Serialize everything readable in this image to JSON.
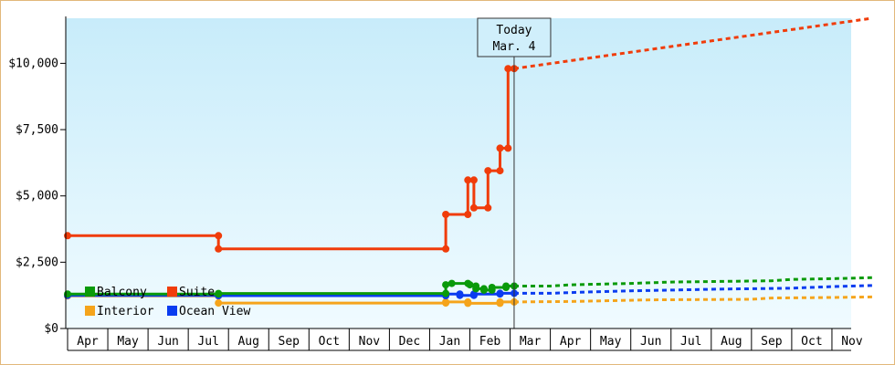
{
  "chart_data": {
    "type": "line",
    "title": "",
    "xlabel": "",
    "ylabel": "",
    "ylim": [
      0,
      11700
    ],
    "y_ticks": [
      {
        "value": 0,
        "label": "$0"
      },
      {
        "value": 2500,
        "label": "$2,500"
      },
      {
        "value": 5000,
        "label": "$5,000"
      },
      {
        "value": 7500,
        "label": "$7,500"
      },
      {
        "value": 10000,
        "label": "$10,000"
      }
    ],
    "months": [
      "Apr",
      "May",
      "Jun",
      "Jul",
      "Aug",
      "Sep",
      "Oct",
      "Nov",
      "Dec",
      "Jan",
      "Feb",
      "Mar",
      "Apr",
      "May",
      "Jun",
      "Jul",
      "Aug",
      "Sep",
      "Oct",
      "Nov"
    ],
    "x_unit": "months since start of Apr (fractional)",
    "today": {
      "line1": "Today",
      "line2": "Mar. 4",
      "x": 11.1
    },
    "grid": false,
    "legend_position": "bottom-left",
    "series": [
      {
        "name": "Balcony",
        "color": "#0a9a0a",
        "points": [
          [
            0,
            1300
          ],
          [
            3.75,
            1300
          ],
          [
            3.75,
            1320
          ],
          [
            9.4,
            1320
          ],
          [
            9.4,
            1650
          ],
          [
            9.55,
            1700
          ],
          [
            9.95,
            1700
          ],
          [
            10.0,
            1650
          ],
          [
            10.15,
            1600
          ],
          [
            10.15,
            1500
          ],
          [
            10.35,
            1500
          ],
          [
            10.35,
            1450
          ],
          [
            10.55,
            1450
          ],
          [
            10.55,
            1550
          ],
          [
            10.9,
            1550
          ],
          [
            10.9,
            1600
          ],
          [
            11.1,
            1600
          ]
        ],
        "forecast": [
          [
            11.1,
            1600
          ],
          [
            12,
            1600
          ],
          [
            12.5,
            1650
          ],
          [
            14,
            1700
          ],
          [
            15,
            1750
          ],
          [
            17.5,
            1800
          ],
          [
            18,
            1850
          ],
          [
            19,
            1880
          ],
          [
            20,
            1920
          ]
        ]
      },
      {
        "name": "Suite",
        "color": "#f03c0a",
        "points": [
          [
            0,
            3500
          ],
          [
            3.75,
            3500
          ],
          [
            3.75,
            3000
          ],
          [
            9.4,
            3000
          ],
          [
            9.4,
            4300
          ],
          [
            9.95,
            4300
          ],
          [
            9.95,
            5600
          ],
          [
            10.1,
            5600
          ],
          [
            10.1,
            4550
          ],
          [
            10.45,
            4550
          ],
          [
            10.45,
            5950
          ],
          [
            10.75,
            5950
          ],
          [
            10.75,
            6800
          ],
          [
            10.95,
            6800
          ],
          [
            10.95,
            9800
          ],
          [
            11.1,
            9800
          ]
        ],
        "forecast": [
          [
            11.1,
            9800
          ],
          [
            20,
            11700
          ]
        ]
      },
      {
        "name": "Interior",
        "color": "#f5a41b",
        "points": [
          [
            0,
            1230
          ],
          [
            3.75,
            1230
          ],
          [
            3.75,
            960
          ],
          [
            9.4,
            960
          ],
          [
            9.4,
            1000
          ],
          [
            9.95,
            1000
          ],
          [
            9.95,
            950
          ],
          [
            10.75,
            950
          ],
          [
            10.75,
            1000
          ],
          [
            11.1,
            1000
          ]
        ],
        "forecast": [
          [
            11.1,
            1000
          ],
          [
            12.5,
            1020
          ],
          [
            13.5,
            1050
          ],
          [
            14.5,
            1080
          ],
          [
            17,
            1100
          ],
          [
            17.5,
            1150
          ],
          [
            19,
            1170
          ],
          [
            20,
            1190
          ]
        ]
      },
      {
        "name": "Ocean View",
        "color": "#0a3cf0",
        "points": [
          [
            0,
            1250
          ],
          [
            3.75,
            1250
          ],
          [
            3.75,
            1240
          ],
          [
            9.4,
            1240
          ],
          [
            9.4,
            1300
          ],
          [
            9.75,
            1300
          ],
          [
            9.75,
            1250
          ],
          [
            10.1,
            1250
          ],
          [
            10.1,
            1300
          ],
          [
            10.75,
            1300
          ],
          [
            10.75,
            1330
          ],
          [
            11.1,
            1330
          ]
        ],
        "forecast": [
          [
            11.1,
            1330
          ],
          [
            12,
            1330
          ],
          [
            13,
            1380
          ],
          [
            14,
            1420
          ],
          [
            15,
            1450
          ],
          [
            16,
            1480
          ],
          [
            18,
            1520
          ],
          [
            19,
            1580
          ],
          [
            20,
            1620
          ]
        ]
      }
    ]
  }
}
